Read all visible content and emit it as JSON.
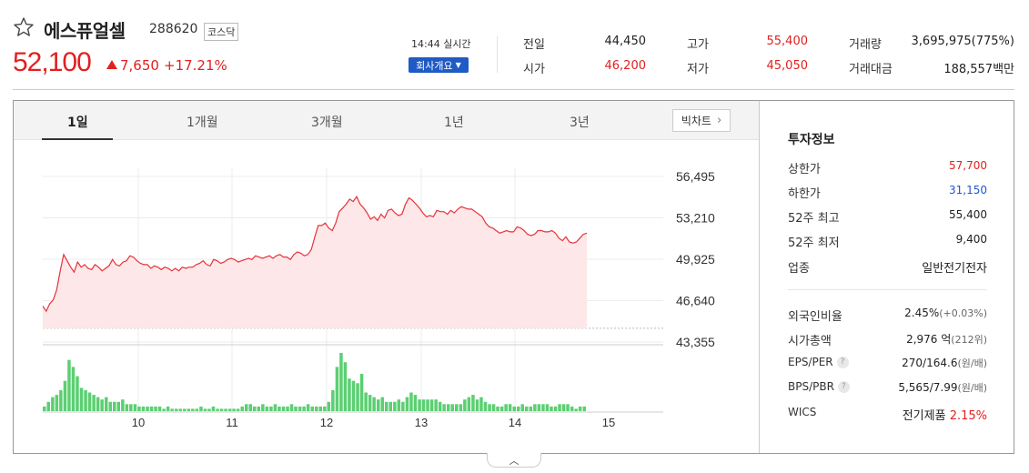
{
  "header": {
    "name": "에스퓨얼셀",
    "code": "288620",
    "market": "코스닥",
    "price": "52,100",
    "change": "7,650",
    "change_pct": "+17.21%",
    "realtime": "14:44 실시간",
    "company_button": "회사개요",
    "colors": {
      "up": "#e22020",
      "down": "#2156d2",
      "button": "#1f5bc4"
    }
  },
  "quote": [
    {
      "label": "전일",
      "value": "44,450",
      "color": "black"
    },
    {
      "label": "고가",
      "value": "55,400",
      "color": "red"
    },
    {
      "label": "거래량",
      "value": "3,695,975(775%)",
      "color": "black"
    },
    {
      "label": "시가",
      "value": "46,200",
      "color": "red"
    },
    {
      "label": "저가",
      "value": "45,050",
      "color": "red"
    },
    {
      "label": "거래대금",
      "value": "188,557백만",
      "color": "black"
    }
  ],
  "tabs": [
    "1일",
    "1개월",
    "3개월",
    "1년",
    "3년"
  ],
  "active_tab": "1일",
  "big_chart_label": "빅차트",
  "chart_data": {
    "type": "line",
    "y_ticks": [
      "56,495",
      "53,210",
      "49,925",
      "46,640",
      "43,355"
    ],
    "ylim": [
      43355,
      56495
    ],
    "x_ticks": [
      "10",
      "11",
      "12",
      "13",
      "14",
      "15"
    ],
    "reference_line": 44450,
    "price_series": [
      46200,
      45800,
      46400,
      46700,
      47500,
      49000,
      50300,
      49800,
      49300,
      48900,
      49700,
      49300,
      49500,
      49200,
      49100,
      49500,
      49300,
      49000,
      49200,
      49400,
      49900,
      49500,
      49400,
      49700,
      49800,
      50200,
      50100,
      49800,
      49600,
      49500,
      49500,
      49200,
      49400,
      49300,
      49100,
      49300,
      49200,
      49000,
      49200,
      49000,
      49300,
      49200,
      49300,
      49300,
      49500,
      49600,
      49800,
      49500,
      49400,
      49900,
      49800,
      49600,
      49700,
      49900,
      50000,
      49900,
      49700,
      49800,
      49900,
      50000,
      49900,
      50200,
      50100,
      50000,
      50100,
      50200,
      50000,
      50200,
      50300,
      50100,
      50100,
      49900,
      50300,
      50500,
      50400,
      50200,
      50300,
      50700,
      51700,
      52600,
      52600,
      52800,
      52400,
      52200,
      52800,
      53700,
      54000,
      54300,
      54700,
      54500,
      54900,
      54300,
      54000,
      53600,
      53100,
      53300,
      53000,
      53500,
      53200,
      53800,
      53900,
      53600,
      53400,
      53500,
      54300,
      54800,
      54600,
      54300,
      54000,
      53600,
      53300,
      53400,
      53300,
      53800,
      53700,
      53700,
      53500,
      53800,
      53600,
      53900,
      54100,
      54000,
      53900,
      53900,
      53700,
      53500,
      53300,
      52800,
      52500,
      52400,
      52200,
      52000,
      52100,
      52200,
      52100,
      52100,
      52500,
      52400,
      52200,
      51900,
      51800,
      51900,
      52200,
      52200,
      52100,
      52100,
      52200,
      52000,
      51600,
      51400,
      51700,
      51300,
      51200,
      51300,
      51600,
      51900,
      52000
    ],
    "volume_series": [
      2,
      4,
      6,
      7,
      9,
      13,
      22,
      19,
      15,
      10,
      9,
      8,
      7,
      6,
      5,
      6,
      4,
      4,
      4,
      5,
      3,
      3,
      3,
      2,
      2,
      2,
      2,
      2,
      2,
      1,
      2,
      1,
      1,
      1,
      1,
      1,
      1,
      1,
      2,
      1,
      1,
      2,
      1,
      1,
      1,
      1,
      1,
      1,
      2,
      3,
      3,
      2,
      2,
      3,
      2,
      2,
      3,
      2,
      2,
      2,
      3,
      2,
      2,
      2,
      3,
      2,
      2,
      2,
      2,
      4,
      9,
      19,
      25,
      21,
      14,
      13,
      12,
      16,
      8,
      7,
      6,
      5,
      6,
      4,
      4,
      4,
      5,
      4,
      6,
      8,
      7,
      5,
      5,
      5,
      5,
      5,
      4,
      3,
      3,
      3,
      3,
      3,
      5,
      6,
      7,
      5,
      6,
      4,
      3,
      3,
      2,
      2,
      3,
      3,
      2,
      2,
      3,
      2,
      2,
      3,
      3,
      3,
      3,
      2,
      2,
      3,
      3,
      3,
      2,
      1,
      2,
      2
    ],
    "volume_color": "#5bcf72",
    "line_color": "#e5323a",
    "area_color": "#fde7e8"
  },
  "info": {
    "title": "투자정보",
    "rows": [
      {
        "label": "상한가",
        "value": "57,700",
        "color": "red"
      },
      {
        "label": "하한가",
        "value": "31,150",
        "color": "blue"
      },
      {
        "label": "52주 최고",
        "value": "55,400",
        "color": "black"
      },
      {
        "label": "52주 최저",
        "value": "9,400",
        "color": "black"
      },
      {
        "label": "업종",
        "value": "일반전기전자",
        "color": "black"
      }
    ],
    "rows2": [
      {
        "label": "외국인비율",
        "value": "2.45%",
        "sub": "(+0.03%)",
        "help": false
      },
      {
        "label": "시가총액",
        "value": "2,976 억",
        "sub": "(212위)",
        "help": false
      },
      {
        "label": "EPS/PER",
        "value": "270/164.6",
        "sub": "(원/배)",
        "help": true
      },
      {
        "label": "BPS/PBR",
        "value": "5,565/7.99",
        "sub": "(원/배)",
        "help": true
      }
    ],
    "wics_label": "WICS",
    "wics_value": "전기제품",
    "wics_pct": "2.15%"
  },
  "collapse_icon": "chevron-up-icon"
}
